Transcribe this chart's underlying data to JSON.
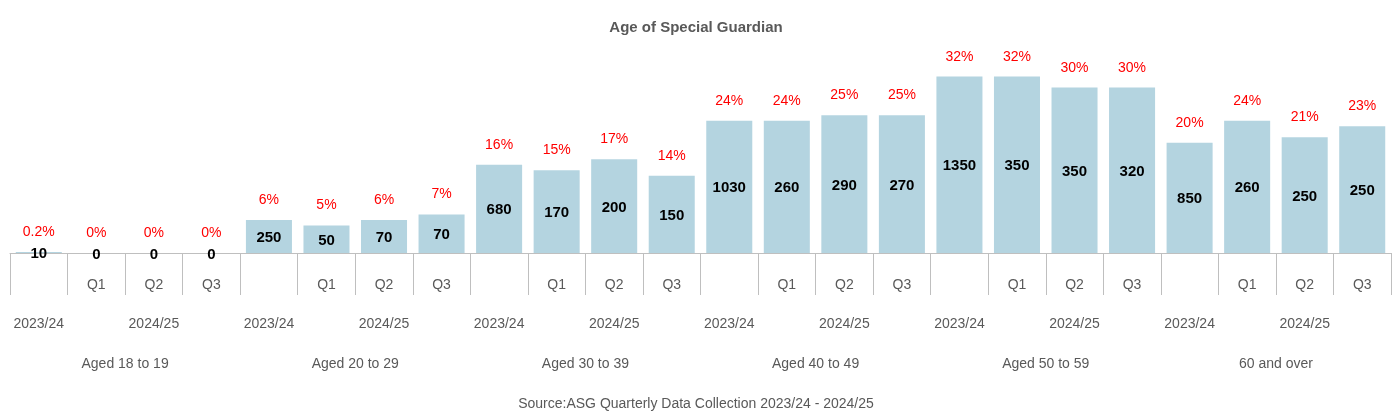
{
  "chart_data": {
    "type": "bar",
    "title": "Age of Special Guardian",
    "categories": [
      null,
      "Q1",
      "Q2",
      "Q3",
      null,
      "Q1",
      "Q2",
      "Q3",
      null,
      "Q1",
      "Q2",
      "Q3",
      null,
      "Q1",
      "Q2",
      "Q3",
      null,
      "Q1",
      "Q2",
      "Q3",
      null,
      "Q1",
      "Q2",
      "Q3"
    ],
    "series": [
      {
        "color": "#b4d4e0",
        "values": [
          0.2,
          0,
          0,
          0,
          6,
          5,
          6,
          7,
          16,
          15,
          17,
          14,
          24,
          24,
          25,
          25,
          32,
          32,
          30,
          30,
          20,
          24,
          21,
          23
        ],
        "value_labels": [
          "0.2%",
          "0%",
          "0%",
          "0%",
          "6%",
          "5%",
          "6%",
          "7%",
          "16%",
          "15%",
          "17%",
          "14%",
          "24%",
          "24%",
          "25%",
          "25%",
          "32%",
          "32%",
          "30%",
          "30%",
          "20%",
          "24%",
          "21%",
          "23%"
        ]
      }
    ],
    "annotations": [
      "10",
      "0",
      "0",
      "0",
      "250",
      "50",
      "70",
      "70",
      "680",
      "170",
      "200",
      "150",
      "1030",
      "260",
      "290",
      "270",
      "1350",
      "350",
      "350",
      "320",
      "850",
      "260",
      "250",
      "250",
      "2023/24",
      "2023/24",
      "2023/24",
      "2023/24",
      "2023/24",
      "2023/24",
      "2024/25",
      "2024/25",
      "2024/25",
      "2024/25",
      "2024/25",
      "2024/25",
      "Aged 18 to 19",
      "Aged 20 to 29",
      "Aged 30 to 39",
      "Aged 40 to 49",
      "Aged 50 to 59",
      "60 and over",
      "Source:ASG Quarterly Data Collection 2023/24 - 2024/25"
    ]
  }
}
